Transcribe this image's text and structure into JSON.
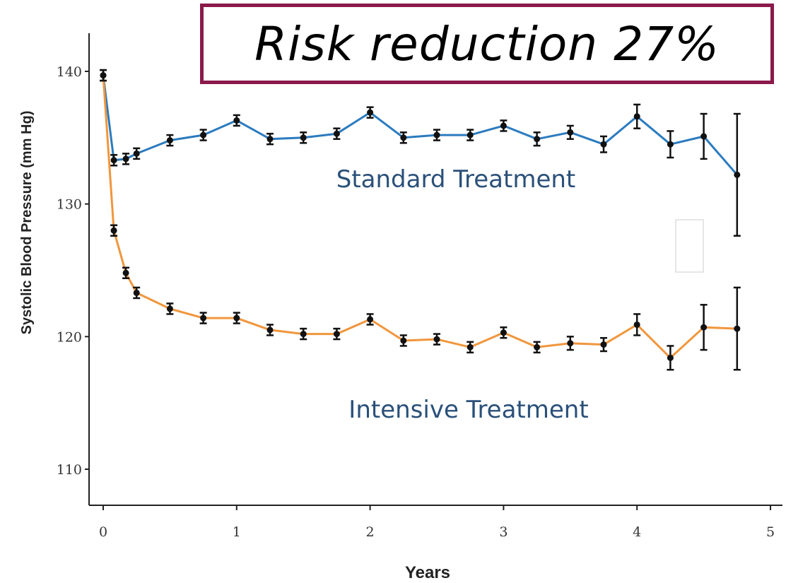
{
  "banner": {
    "text": "Risk reduction 27%"
  },
  "chart_data": {
    "type": "line",
    "title": "",
    "xlabel": "Years",
    "ylabel": "Systolic Blood Pressure (mm Hg)",
    "xlim": [
      0,
      5
    ],
    "ylim": [
      105,
      146
    ],
    "x_ticks": [
      0,
      1,
      2,
      3,
      4,
      5
    ],
    "y_ticks": [
      110,
      120,
      130,
      140
    ],
    "grid": false,
    "series": [
      {
        "name": "Standard Treatment",
        "color": "#2b7bbf",
        "x": [
          0,
          0.08,
          0.17,
          0.25,
          0.5,
          0.75,
          1,
          1.25,
          1.5,
          1.75,
          2,
          2.25,
          2.5,
          2.75,
          3,
          3.25,
          3.5,
          3.75,
          4,
          4.25,
          4.5,
          4.75
        ],
        "y": [
          139.7,
          133.3,
          133.4,
          133.8,
          134.8,
          135.2,
          136.3,
          134.9,
          135.0,
          135.3,
          136.9,
          135.0,
          135.2,
          135.2,
          135.9,
          134.9,
          135.4,
          134.5,
          136.6,
          134.5,
          135.1,
          132.2
        ],
        "err": [
          0.4,
          0.4,
          0.4,
          0.4,
          0.4,
          0.4,
          0.4,
          0.4,
          0.4,
          0.4,
          0.4,
          0.4,
          0.4,
          0.4,
          0.4,
          0.5,
          0.5,
          0.6,
          0.9,
          1.0,
          1.7,
          4.6
        ]
      },
      {
        "name": "Intensive Treatment",
        "color": "#f0963c",
        "x": [
          0,
          0.08,
          0.17,
          0.25,
          0.5,
          0.75,
          1,
          1.25,
          1.5,
          1.75,
          2,
          2.25,
          2.5,
          2.75,
          3,
          3.25,
          3.5,
          3.75,
          4,
          4.25,
          4.5,
          4.75
        ],
        "y": [
          139.7,
          128.0,
          124.8,
          123.3,
          122.1,
          121.4,
          121.4,
          120.5,
          120.2,
          120.2,
          121.3,
          119.7,
          119.8,
          119.2,
          120.3,
          119.2,
          119.5,
          119.4,
          120.9,
          118.4,
          120.7,
          120.6
        ],
        "err": [
          0.4,
          0.4,
          0.4,
          0.4,
          0.4,
          0.4,
          0.4,
          0.4,
          0.4,
          0.4,
          0.4,
          0.4,
          0.4,
          0.4,
          0.4,
          0.4,
          0.5,
          0.5,
          0.8,
          0.9,
          1.7,
          3.1
        ]
      }
    ]
  }
}
